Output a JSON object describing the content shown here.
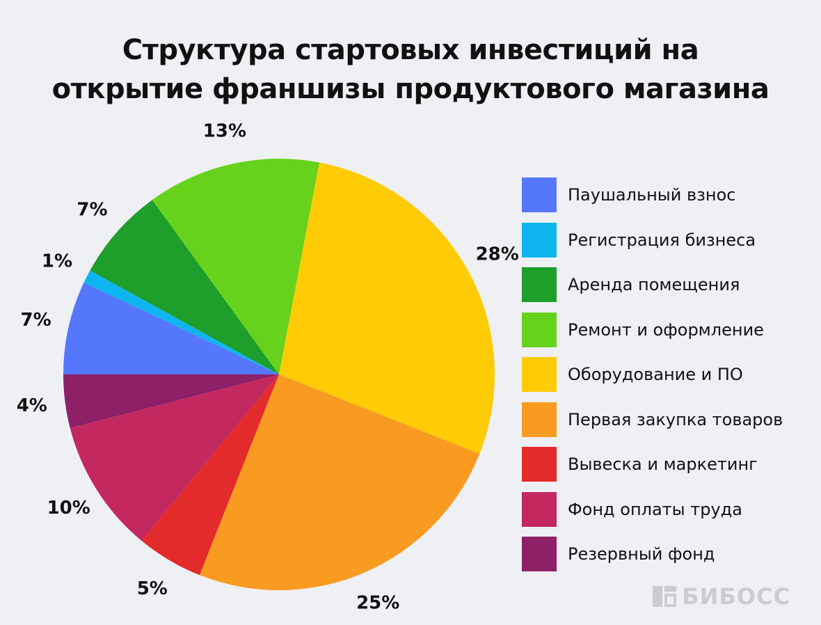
{
  "chart_data": {
    "type": "pie",
    "title_lines": [
      "Структура стартовых инвестиций на",
      "открытие франшизы продуктового магазина"
    ],
    "slices": [
      {
        "label": "Паушальный взнос",
        "value": 7,
        "display": "7%",
        "color": "#5577fb"
      },
      {
        "label": "Регистрация бизнеса",
        "value": 1,
        "display": "1%",
        "color": "#0eb5ee"
      },
      {
        "label": "Аренда помещения",
        "value": 7,
        "display": "7%",
        "color": "#1e9e2a"
      },
      {
        "label": "Ремонт и оформление",
        "value": 13,
        "display": "13%",
        "color": "#67d21c"
      },
      {
        "label": "Оборудование и ПО",
        "value": 28,
        "display": "28%",
        "color": "#ffcb05"
      },
      {
        "label": "Первая закупка товаров",
        "value": 25,
        "display": "25%",
        "color": "#f99a21"
      },
      {
        "label": "Вывеска и маркетинг",
        "value": 5,
        "display": "5%",
        "color": "#e42b2b"
      },
      {
        "label": "Фонд оплаты труда",
        "value": 10,
        "display": "10%",
        "color": "#c3285f"
      },
      {
        "label": "Резервный фонд",
        "value": 4,
        "display": "4%",
        "color": "#8e2068"
      }
    ],
    "legend_position": "right"
  },
  "watermark": {
    "text": "БИБОСС",
    "icon": "bibosс-logo-icon",
    "color": "#c9ccd2"
  }
}
